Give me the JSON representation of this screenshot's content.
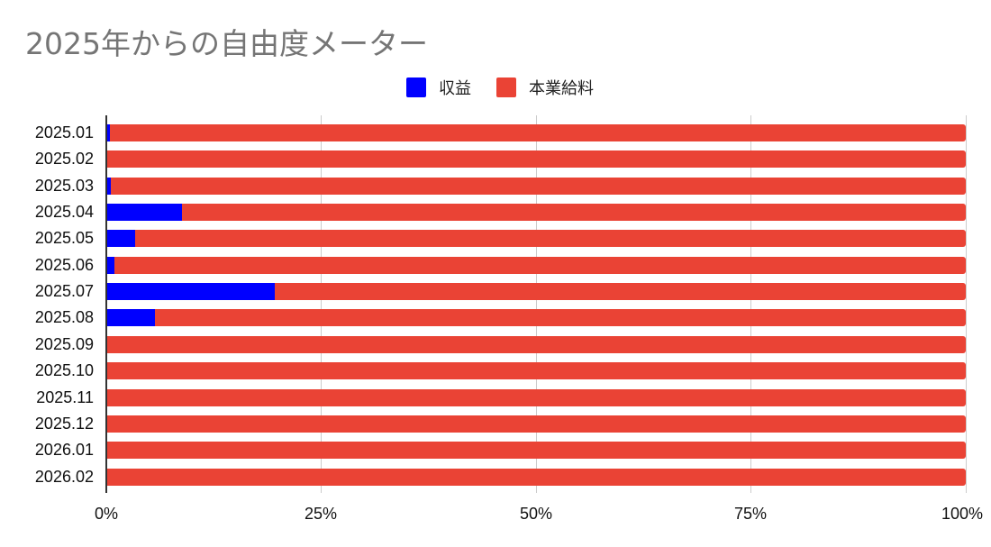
{
  "title": "2025年からの自由度メーター",
  "colors": {
    "revenue": "#0000ff",
    "salary": "#ea4335",
    "title": "#757575",
    "grid": "#cccccc",
    "axis": "#333333"
  },
  "legend": [
    {
      "label": "収益",
      "color": "#0000ff"
    },
    {
      "label": "本業給料",
      "color": "#ea4335"
    }
  ],
  "x_ticks": [
    "0%",
    "25%",
    "50%",
    "75%",
    "100%"
  ],
  "chart_data": {
    "type": "bar",
    "orientation": "horizontal",
    "stacked": "percent",
    "title": "2025年からの自由度メーター",
    "xlabel": "",
    "ylabel": "",
    "xlim": [
      0,
      100
    ],
    "x_tick_labels": [
      "0%",
      "25%",
      "50%",
      "75%",
      "100%"
    ],
    "grid": true,
    "legend_position": "top",
    "categories": [
      "2025.01",
      "2025.02",
      "2025.03",
      "2025.04",
      "2025.05",
      "2025.06",
      "2025.07",
      "2025.08",
      "2025.09",
      "2025.10",
      "2025.11",
      "2025.12",
      "2026.01",
      "2026.02"
    ],
    "series": [
      {
        "name": "収益",
        "color": "#0000ff",
        "values": [
          0.4,
          0,
          0.5,
          8.8,
          3.4,
          0.9,
          19.6,
          5.7,
          0,
          0,
          0,
          0,
          0,
          0
        ]
      },
      {
        "name": "本業給料",
        "color": "#ea4335",
        "values": [
          99.6,
          100,
          99.5,
          91.2,
          96.6,
          99.1,
          80.4,
          94.3,
          100,
          100,
          100,
          100,
          100,
          100
        ]
      }
    ]
  }
}
